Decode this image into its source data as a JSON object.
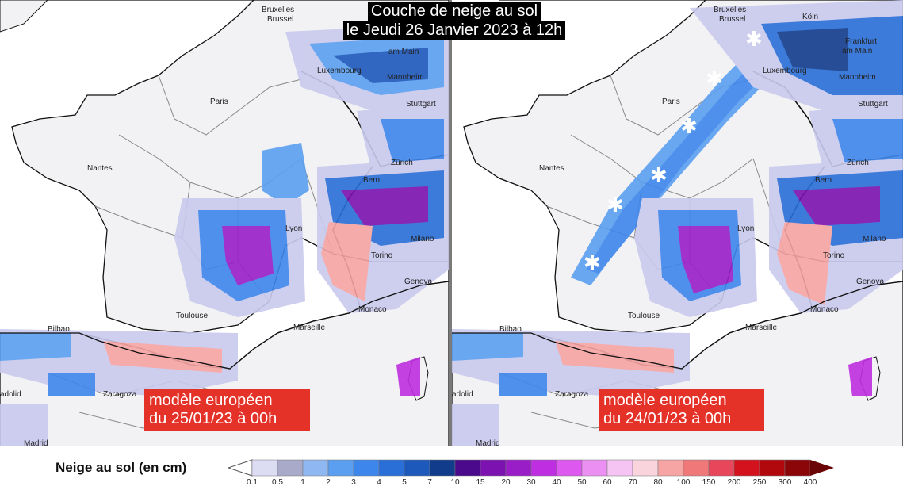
{
  "title": {
    "line1": "Couche de neige au sol",
    "line2": "le Jeudi 26 Janvier 2023 à 12h"
  },
  "panels": [
    {
      "id": "left",
      "model_line1": "modèle européen",
      "model_line2": "du 25/01/23 à 00h",
      "cities": [
        "Bruxelles",
        "Brussel",
        "am Main",
        "Luxembourg",
        "Mannheim",
        "Stuttgart",
        "Paris",
        "Zürich",
        "Bern",
        "Nantes",
        "Lyon",
        "Milano",
        "Torino",
        "Genova",
        "Toulouse",
        "Marseille",
        "Monaco",
        "Bilbao",
        "Zaragoza",
        "adolid",
        "Madrid"
      ]
    },
    {
      "id": "right",
      "model_line1": "modèle européen",
      "model_line2": "du 24/01/23 à 00h",
      "cities": [
        "Bruxelles",
        "Brussel",
        "Köln",
        "Frankfurt",
        "am Main",
        "Luxembourg",
        "Mannheim",
        "Stuttgart",
        "Paris",
        "Zürich",
        "Bern",
        "Nantes",
        "Lyon",
        "Milano",
        "Torino",
        "Genova",
        "Toulouse",
        "Marseille",
        "Monaco",
        "Bilbao",
        "Zaragoza",
        "adolid",
        "Madrid"
      ]
    }
  ],
  "legend": {
    "title": "Neige au sol (en cm)",
    "ticks": [
      "0.1",
      "0.5",
      "1",
      "2",
      "3",
      "4",
      "5",
      "7",
      "10",
      "15",
      "20",
      "30",
      "40",
      "50",
      "60",
      "70",
      "80",
      "100",
      "150",
      "200",
      "250",
      "300",
      "400"
    ],
    "colors": [
      "#dcdcf2",
      "#a9a9c9",
      "#8fb8f2",
      "#5b9ff0",
      "#3d86ec",
      "#2a6fd8",
      "#1d58bb",
      "#113c8c",
      "#4b0a8c",
      "#7c12b0",
      "#9a1ec8",
      "#bf2ee0",
      "#dc58ee",
      "#eb8ff3",
      "#f6c4f2",
      "#fad4dc",
      "#f7a4a4",
      "#f07878",
      "#e8465a",
      "#d3121e",
      "#b0080c",
      "#8a0608",
      "#6a0406"
    ]
  },
  "colors": {
    "title_bg": "#000000",
    "label_bg": "#e53228",
    "panel_divider": "#7a7a7a"
  }
}
